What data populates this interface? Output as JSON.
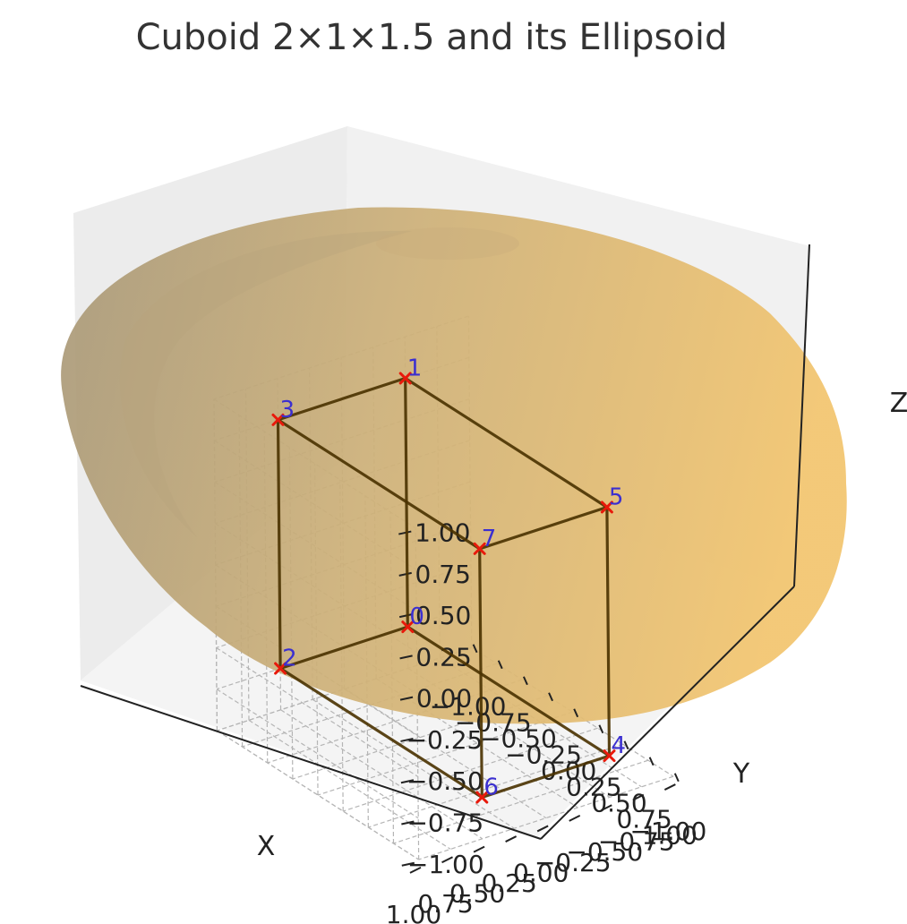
{
  "chart_data": {
    "type": "3d-wireframe-with-surface",
    "title": "Cuboid 2×1×1.5 and its Ellipsoid",
    "xlabel": "X",
    "ylabel": "Y",
    "zlabel": "Z",
    "xlim": [
      -1.0,
      1.0
    ],
    "ylim": [
      -1.0,
      1.0
    ],
    "zlim": [
      -1.0,
      1.0
    ],
    "x_ticks": [
      "−1.00",
      "−0.75",
      "−0.50",
      "−0.25",
      "0.00",
      "0.25",
      "0.50",
      "0.75",
      "1.00"
    ],
    "y_ticks": [
      "−1.00",
      "−0.75",
      "−0.50",
      "−0.25",
      "0.00",
      "0.25",
      "0.50",
      "0.75",
      "1.00"
    ],
    "z_ticks": [
      "−1.00",
      "−0.75",
      "−0.50",
      "−0.25",
      "0.00",
      "0.25",
      "0.50",
      "0.75",
      "1.00"
    ],
    "grid": true,
    "cuboid": {
      "dimensions": [
        2,
        1,
        1.5
      ]
    },
    "vertices": [
      {
        "label": "0",
        "x": -1.0,
        "y": -0.5,
        "z": -0.75
      },
      {
        "label": "1",
        "x": -1.0,
        "y": -0.5,
        "z": 0.75
      },
      {
        "label": "2",
        "x": -1.0,
        "y": 0.5,
        "z": -0.75
      },
      {
        "label": "3",
        "x": -1.0,
        "y": 0.5,
        "z": 0.75
      },
      {
        "label": "4",
        "x": 1.0,
        "y": -0.5,
        "z": -0.75
      },
      {
        "label": "5",
        "x": 1.0,
        "y": -0.5,
        "z": 0.75
      },
      {
        "label": "6",
        "x": 1.0,
        "y": 0.5,
        "z": -0.75
      },
      {
        "label": "7",
        "x": 1.0,
        "y": 0.5,
        "z": 0.75
      }
    ],
    "edges": [
      [
        0,
        1
      ],
      [
        0,
        2
      ],
      [
        0,
        4
      ],
      [
        1,
        3
      ],
      [
        1,
        5
      ],
      [
        2,
        3
      ],
      [
        2,
        6
      ],
      [
        3,
        7
      ],
      [
        4,
        5
      ],
      [
        4,
        6
      ],
      [
        5,
        7
      ],
      [
        6,
        7
      ]
    ],
    "colors": {
      "edge": "#4a3200",
      "marker": "#e8190b",
      "vertex_label": "#3b2fd0",
      "ellipsoid_light": "#f2c46d",
      "ellipsoid_dark": "#a89878"
    }
  }
}
